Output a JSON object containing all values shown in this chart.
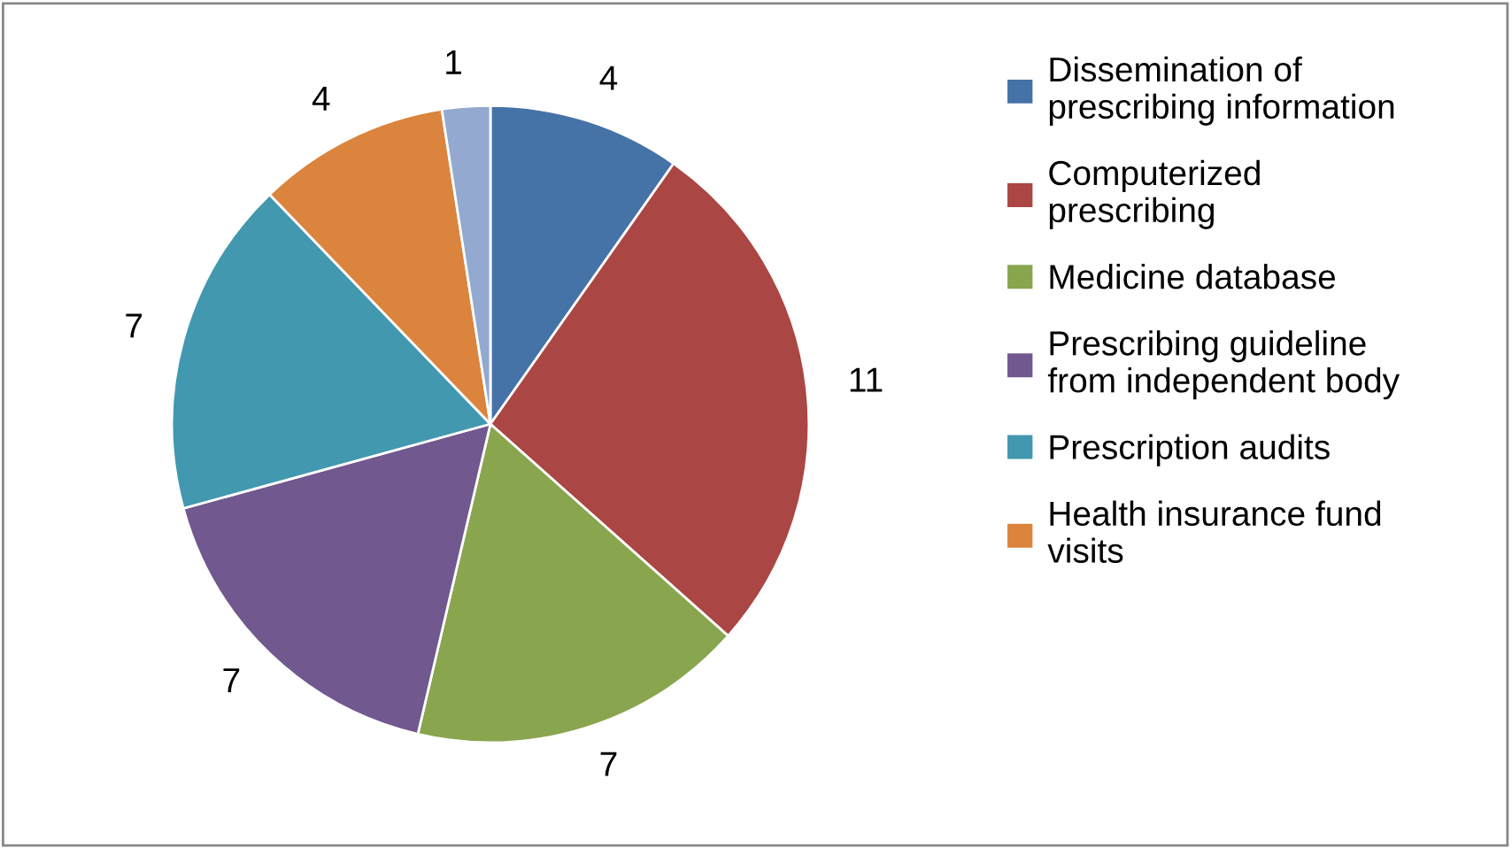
{
  "chart_data": {
    "type": "pie",
    "categories": [
      "Dissemination of\nprescribing information",
      "Computerized\nprescribing",
      "Medicine database",
      "Prescribing guideline\nfrom independent body",
      "Prescription audits",
      "Health insurance fund\nvisits",
      null
    ],
    "values": [
      4,
      11,
      7,
      7,
      7,
      4,
      1
    ],
    "colors": [
      "#4572a7",
      "#aa4643",
      "#89a54e",
      "#71588f",
      "#4198af",
      "#db843d",
      "#93a9cf"
    ],
    "data_labels": true,
    "legend": "right"
  }
}
